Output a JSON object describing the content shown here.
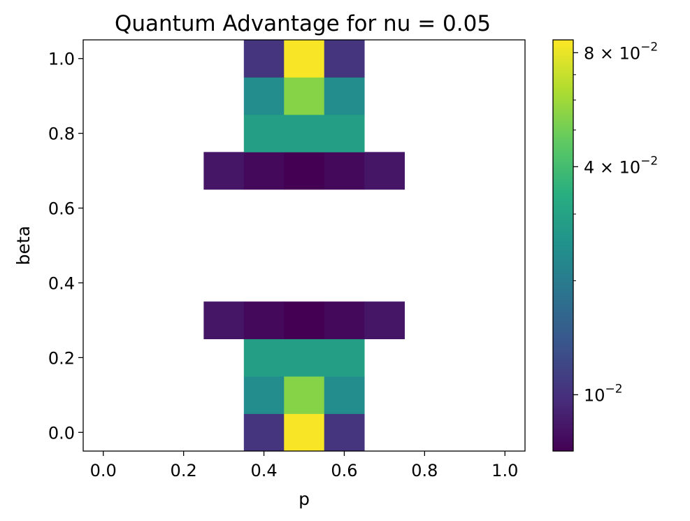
{
  "chart_data": {
    "type": "heatmap",
    "title": "Quantum Advantage for nu = 0.05",
    "xlabel": "p",
    "ylabel": "beta",
    "x_centers": [
      0.0,
      0.1,
      0.2,
      0.3,
      0.4,
      0.5,
      0.6,
      0.7,
      0.8,
      0.9,
      1.0
    ],
    "y_centers": [
      0.0,
      0.1,
      0.2,
      0.3,
      0.4,
      0.5,
      0.6,
      0.7,
      0.8,
      0.9,
      1.0
    ],
    "xlim": [
      -0.05,
      1.05
    ],
    "ylim": [
      -0.05,
      1.05
    ],
    "x_ticks": [
      "0.0",
      "0.2",
      "0.4",
      "0.6",
      "0.8",
      "1.0"
    ],
    "y_ticks": [
      "0.0",
      "0.2",
      "0.4",
      "0.6",
      "0.8",
      "1.0"
    ],
    "cells": [
      {
        "p": 0.4,
        "beta": 0.0,
        "value": 0.0105
      },
      {
        "p": 0.5,
        "beta": 0.0,
        "value": 0.085
      },
      {
        "p": 0.6,
        "beta": 0.0,
        "value": 0.0105
      },
      {
        "p": 0.4,
        "beta": 0.1,
        "value": 0.024
      },
      {
        "p": 0.5,
        "beta": 0.1,
        "value": 0.055
      },
      {
        "p": 0.6,
        "beta": 0.1,
        "value": 0.024
      },
      {
        "p": 0.4,
        "beta": 0.2,
        "value": 0.029
      },
      {
        "p": 0.5,
        "beta": 0.2,
        "value": 0.029
      },
      {
        "p": 0.6,
        "beta": 0.2,
        "value": 0.029
      },
      {
        "p": 0.3,
        "beta": 0.3,
        "value": 0.0082
      },
      {
        "p": 0.4,
        "beta": 0.3,
        "value": 0.0075
      },
      {
        "p": 0.5,
        "beta": 0.3,
        "value": 0.0071
      },
      {
        "p": 0.6,
        "beta": 0.3,
        "value": 0.0075
      },
      {
        "p": 0.7,
        "beta": 0.3,
        "value": 0.0082
      },
      {
        "p": 0.3,
        "beta": 0.7,
        "value": 0.0082
      },
      {
        "p": 0.4,
        "beta": 0.7,
        "value": 0.0075
      },
      {
        "p": 0.5,
        "beta": 0.7,
        "value": 0.0071
      },
      {
        "p": 0.6,
        "beta": 0.7,
        "value": 0.0075
      },
      {
        "p": 0.7,
        "beta": 0.7,
        "value": 0.0082
      },
      {
        "p": 0.4,
        "beta": 0.8,
        "value": 0.029
      },
      {
        "p": 0.5,
        "beta": 0.8,
        "value": 0.029
      },
      {
        "p": 0.6,
        "beta": 0.8,
        "value": 0.029
      },
      {
        "p": 0.4,
        "beta": 0.9,
        "value": 0.024
      },
      {
        "p": 0.5,
        "beta": 0.9,
        "value": 0.055
      },
      {
        "p": 0.6,
        "beta": 0.9,
        "value": 0.024
      },
      {
        "p": 0.4,
        "beta": 1.0,
        "value": 0.0105
      },
      {
        "p": 0.5,
        "beta": 1.0,
        "value": 0.085
      },
      {
        "p": 0.6,
        "beta": 1.0,
        "value": 0.0105
      }
    ],
    "colorbar": {
      "colormap": "viridis",
      "scale": "log",
      "vmin": 0.0071,
      "vmax": 0.0865,
      "major_ticks": [
        {
          "value": 0.08,
          "mantissa": "8 × 10",
          "exponent": "−2"
        },
        {
          "value": 0.04,
          "mantissa": "4 × 10",
          "exponent": "−2"
        },
        {
          "value": 0.01,
          "mantissa": "10",
          "exponent": "−2"
        }
      ],
      "minor_ticks": [
        0.02,
        0.03,
        0.05,
        0.06,
        0.07
      ]
    },
    "grid": false
  }
}
